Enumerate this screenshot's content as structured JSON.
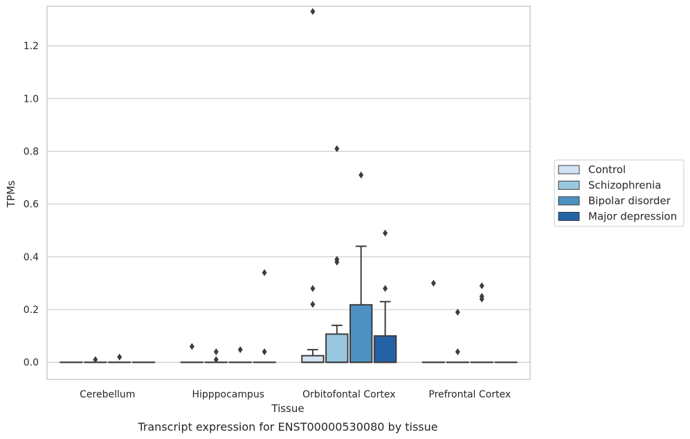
{
  "chart_data": {
    "type": "box",
    "title": "",
    "caption": "Transcript expression for ENST00000530080 by tissue",
    "xlabel": "Tissue",
    "ylabel": "TPMs",
    "ylim": [
      -0.065,
      1.35
    ],
    "yticks": [
      0.0,
      0.2,
      0.4,
      0.6,
      0.8,
      1.0,
      1.2
    ],
    "ytick_labels": [
      "0.0",
      "0.2",
      "0.4",
      "0.6",
      "0.8",
      "1.0",
      "1.2"
    ],
    "grid": true,
    "legend_position": "right",
    "categories": [
      "Cerebellum",
      "Hipppocampus",
      "Orbitofontal Cortex",
      "Prefrontal Cortex"
    ],
    "series": [
      {
        "name": "Control",
        "color": "#d1e2f2",
        "boxes": [
          {
            "q1": 0,
            "median": 0,
            "q3": 0,
            "whisker_low": 0,
            "whisker_high": 0,
            "outliers": []
          },
          {
            "q1": 0,
            "median": 0,
            "q3": 0,
            "whisker_low": 0,
            "whisker_high": 0,
            "outliers": [
              0.06
            ]
          },
          {
            "q1": 0,
            "median": 0,
            "q3": 0.025,
            "whisker_low": 0,
            "whisker_high": 0.048,
            "outliers": [
              0.22,
              0.28,
              1.33
            ]
          },
          {
            "q1": 0,
            "median": 0,
            "q3": 0,
            "whisker_low": 0,
            "whisker_high": 0,
            "outliers": [
              0.3
            ]
          }
        ]
      },
      {
        "name": "Schizophrenia",
        "color": "#9ac7e0",
        "boxes": [
          {
            "q1": 0,
            "median": 0,
            "q3": 0,
            "whisker_low": 0,
            "whisker_high": 0,
            "outliers": [
              0.01
            ]
          },
          {
            "q1": 0,
            "median": 0,
            "q3": 0,
            "whisker_low": 0,
            "whisker_high": 0,
            "outliers": [
              0.01,
              0.04
            ]
          },
          {
            "q1": 0,
            "median": 0,
            "q3": 0.107,
            "whisker_low": 0,
            "whisker_high": 0.14,
            "outliers": [
              0.38,
              0.39,
              0.81
            ]
          },
          {
            "q1": 0,
            "median": 0,
            "q3": 0,
            "whisker_low": 0,
            "whisker_high": 0,
            "outliers": [
              0.04,
              0.19
            ]
          }
        ]
      },
      {
        "name": "Bipolar disorder",
        "color": "#4d91c3",
        "boxes": [
          {
            "q1": 0,
            "median": 0,
            "q3": 0,
            "whisker_low": 0,
            "whisker_high": 0,
            "outliers": [
              0.02
            ]
          },
          {
            "q1": 0,
            "median": 0,
            "q3": 0,
            "whisker_low": 0,
            "whisker_high": 0,
            "outliers": [
              0.048
            ]
          },
          {
            "q1": 0,
            "median": 0,
            "q3": 0.218,
            "whisker_low": 0,
            "whisker_high": 0.44,
            "outliers": [
              0.71
            ]
          },
          {
            "q1": 0,
            "median": 0,
            "q3": 0,
            "whisker_low": 0,
            "whisker_high": 0,
            "outliers": [
              0.24,
              0.25,
              0.29
            ]
          }
        ]
      },
      {
        "name": "Major depression",
        "color": "#2462a6",
        "boxes": [
          {
            "q1": 0,
            "median": 0,
            "q3": 0,
            "whisker_low": 0,
            "whisker_high": 0,
            "outliers": []
          },
          {
            "q1": 0,
            "median": 0,
            "q3": 0,
            "whisker_low": 0,
            "whisker_high": 0,
            "outliers": [
              0.04,
              0.34
            ]
          },
          {
            "q1": 0,
            "median": 0,
            "q3": 0.1,
            "whisker_low": 0,
            "whisker_high": 0.23,
            "outliers": [
              0.28,
              0.49
            ]
          },
          {
            "q1": 0,
            "median": 0,
            "q3": 0,
            "whisker_low": 0,
            "whisker_high": 0,
            "outliers": []
          }
        ]
      }
    ]
  }
}
